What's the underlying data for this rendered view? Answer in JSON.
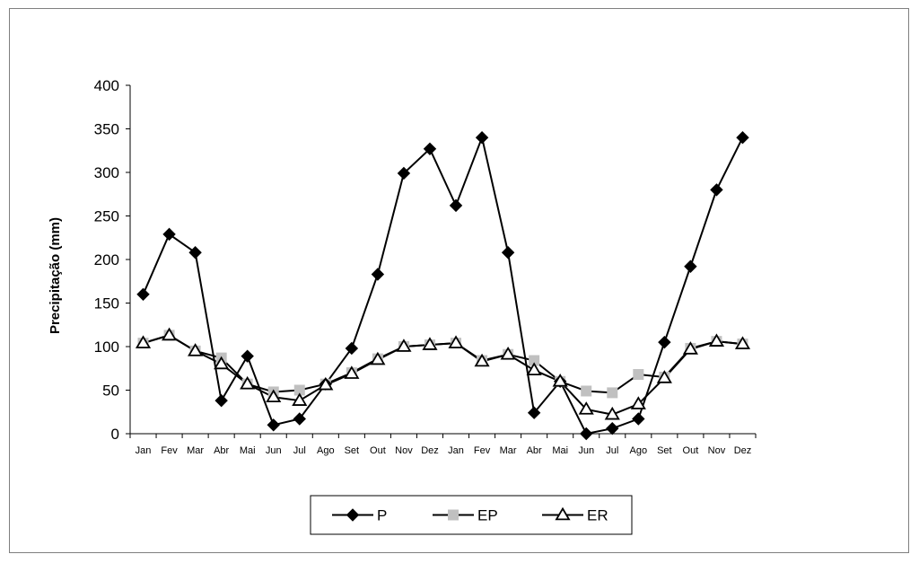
{
  "chart_data": {
    "type": "line",
    "title": "",
    "xlabel": "",
    "ylabel": "Precipitação (mm)",
    "ylim": [
      0,
      400
    ],
    "yticks": [
      0,
      50,
      100,
      150,
      200,
      250,
      300,
      350,
      400
    ],
    "grid": false,
    "legend_position": "bottom",
    "categories": [
      "Jan",
      "Fev",
      "Mar",
      "Abr",
      "Mai",
      "Jun",
      "Jul",
      "Ago",
      "Set",
      "Out",
      "Nov",
      "Dez",
      "Jan",
      "Fev",
      "Mar",
      "Abr",
      "Mai",
      "Jun",
      "Jul",
      "Ago",
      "Set",
      "Out",
      "Nov",
      "Dez"
    ],
    "series": [
      {
        "name": "P",
        "marker": "diamond",
        "color": "#000000",
        "values": [
          160,
          229,
          208,
          38,
          89,
          10,
          17,
          57,
          98,
          183,
          299,
          327,
          262,
          340,
          208,
          24,
          60,
          0,
          6,
          17,
          105,
          192,
          280,
          340
        ]
      },
      {
        "name": "EP",
        "marker": "square",
        "color": "#c0c0c0",
        "values": [
          104,
          113,
          95,
          87,
          57,
          48,
          50,
          57,
          70,
          86,
          100,
          102,
          104,
          84,
          91,
          84,
          60,
          49,
          47,
          68,
          65,
          98,
          106,
          103
        ]
      },
      {
        "name": "ER",
        "marker": "triangle",
        "color": "#000000",
        "values": [
          104,
          113,
          95,
          80,
          57,
          42,
          38,
          56,
          69,
          85,
          100,
          102,
          104,
          83,
          91,
          73,
          60,
          28,
          22,
          34,
          64,
          97,
          106,
          103
        ]
      }
    ]
  }
}
